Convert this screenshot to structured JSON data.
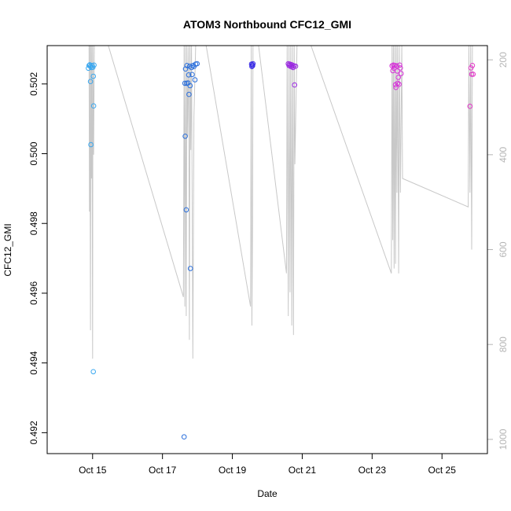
{
  "chart_data": {
    "type": "scatter",
    "title": "ATOM3 Northbound CFC12_GMI",
    "xlabel": "Date",
    "ylabel": "CFC12_GMI",
    "x_ticks": [
      {
        "value": 14.85,
        "label": "Oct 15"
      },
      {
        "value": 16.85,
        "label": "Oct 17"
      },
      {
        "value": 18.85,
        "label": "Oct 19"
      },
      {
        "value": 20.85,
        "label": "Oct 21"
      },
      {
        "value": 22.85,
        "label": "Oct 23"
      },
      {
        "value": 24.85,
        "label": "Oct 25"
      }
    ],
    "y_ticks": [
      {
        "value": 0.492,
        "label": "0.492"
      },
      {
        "value": 0.494,
        "label": "0.494"
      },
      {
        "value": 0.496,
        "label": "0.496"
      },
      {
        "value": 0.498,
        "label": "0.498"
      },
      {
        "value": 0.5,
        "label": "0.500"
      },
      {
        "value": 0.502,
        "label": "0.502"
      }
    ],
    "y2_ticks": [
      {
        "value": 200,
        "label": "200"
      },
      {
        "value": 400,
        "label": "400"
      },
      {
        "value": 600,
        "label": "600"
      },
      {
        "value": 800,
        "label": "800"
      },
      {
        "value": 1000,
        "label": "1000"
      }
    ],
    "xlim": [
      13.55,
      26.15
    ],
    "ylim": [
      0.4914,
      0.5031
    ],
    "y2lim": [
      1030,
      170
    ],
    "y2_axis_color": "#b5b5b5",
    "line_color": "#c8c8c8",
    "grid": false,
    "points": [
      {
        "x": 14.73,
        "y": 0.50245,
        "color": "#3aa8f0"
      },
      {
        "x": 14.75,
        "y": 0.50253,
        "color": "#3aa8f0"
      },
      {
        "x": 14.77,
        "y": 0.50255,
        "color": "#3aa8f0"
      },
      {
        "x": 14.79,
        "y": 0.50251,
        "color": "#3aa8f0"
      },
      {
        "x": 14.79,
        "y": 0.50207,
        "color": "#3aa8f0"
      },
      {
        "x": 14.8,
        "y": 0.50026,
        "color": "#3aa8f0"
      },
      {
        "x": 14.82,
        "y": 0.50247,
        "color": "#3aa8f0"
      },
      {
        "x": 14.84,
        "y": 0.50253,
        "color": "#3aa8f0"
      },
      {
        "x": 14.86,
        "y": 0.50248,
        "color": "#3aa8f0"
      },
      {
        "x": 14.87,
        "y": 0.50222,
        "color": "#3aa8f0"
      },
      {
        "x": 14.88,
        "y": 0.50137,
        "color": "#3aa8f0"
      },
      {
        "x": 14.89,
        "y": 0.50254,
        "color": "#3aa8f0"
      },
      {
        "x": 14.87,
        "y": 0.49375,
        "color": "#3aa8f0"
      },
      {
        "x": 17.47,
        "y": 0.49188,
        "color": "#2a6fdc"
      },
      {
        "x": 17.49,
        "y": 0.50202,
        "color": "#2a6fdc"
      },
      {
        "x": 17.5,
        "y": 0.5005,
        "color": "#2a6fdc"
      },
      {
        "x": 17.51,
        "y": 0.50243,
        "color": "#2a6fdc"
      },
      {
        "x": 17.53,
        "y": 0.49839,
        "color": "#2a6fdc"
      },
      {
        "x": 17.54,
        "y": 0.50202,
        "color": "#2a6fdc"
      },
      {
        "x": 17.55,
        "y": 0.50253,
        "color": "#2a6fdc"
      },
      {
        "x": 17.58,
        "y": 0.50203,
        "color": "#2a6fdc"
      },
      {
        "x": 17.6,
        "y": 0.50226,
        "color": "#2a6fdc"
      },
      {
        "x": 17.61,
        "y": 0.5017,
        "color": "#2a6fdc"
      },
      {
        "x": 17.63,
        "y": 0.50251,
        "color": "#2a6fdc"
      },
      {
        "x": 17.64,
        "y": 0.50195,
        "color": "#2a6fdc"
      },
      {
        "x": 17.65,
        "y": 0.49671,
        "color": "#2a6fdc"
      },
      {
        "x": 17.68,
        "y": 0.50247,
        "color": "#2a6fdc"
      },
      {
        "x": 17.7,
        "y": 0.50227,
        "color": "#2a6fdc"
      },
      {
        "x": 17.72,
        "y": 0.50253,
        "color": "#2a6fdc"
      },
      {
        "x": 17.75,
        "y": 0.5025,
        "color": "#2a6fdc"
      },
      {
        "x": 17.78,
        "y": 0.50212,
        "color": "#2a6fdc"
      },
      {
        "x": 17.8,
        "y": 0.50257,
        "color": "#2a6fdc"
      },
      {
        "x": 17.84,
        "y": 0.50258,
        "color": "#2a6fdc"
      },
      {
        "x": 19.4,
        "y": 0.50257,
        "color": "#3b2de6"
      },
      {
        "x": 19.41,
        "y": 0.5025,
        "color": "#3b2de6"
      },
      {
        "x": 19.42,
        "y": 0.50255,
        "color": "#3b2de6"
      },
      {
        "x": 19.43,
        "y": 0.50252,
        "color": "#3b2de6"
      },
      {
        "x": 19.44,
        "y": 0.50258,
        "color": "#3b2de6"
      },
      {
        "x": 20.45,
        "y": 0.50258,
        "color": "#9a28e0"
      },
      {
        "x": 20.47,
        "y": 0.50253,
        "color": "#9a28e0"
      },
      {
        "x": 20.49,
        "y": 0.50257,
        "color": "#9a28e0"
      },
      {
        "x": 20.51,
        "y": 0.50251,
        "color": "#9a28e0"
      },
      {
        "x": 20.53,
        "y": 0.50256,
        "color": "#9a28e0"
      },
      {
        "x": 20.55,
        "y": 0.50249,
        "color": "#9a28e0"
      },
      {
        "x": 20.57,
        "y": 0.50254,
        "color": "#9a28e0"
      },
      {
        "x": 20.59,
        "y": 0.50247,
        "color": "#9a28e0"
      },
      {
        "x": 20.61,
        "y": 0.50252,
        "color": "#9a28e0"
      },
      {
        "x": 20.63,
        "y": 0.50197,
        "color": "#9a28e0"
      },
      {
        "x": 20.66,
        "y": 0.50251,
        "color": "#9a28e0"
      },
      {
        "x": 23.42,
        "y": 0.50252,
        "color": "#d630d8"
      },
      {
        "x": 23.44,
        "y": 0.50238,
        "color": "#d630d8"
      },
      {
        "x": 23.46,
        "y": 0.50254,
        "color": "#d630d8"
      },
      {
        "x": 23.48,
        "y": 0.50245,
        "color": "#d630d8"
      },
      {
        "x": 23.5,
        "y": 0.50253,
        "color": "#d630d8"
      },
      {
        "x": 23.52,
        "y": 0.50198,
        "color": "#d630d8"
      },
      {
        "x": 23.53,
        "y": 0.5019,
        "color": "#d630d8"
      },
      {
        "x": 23.55,
        "y": 0.50252,
        "color": "#d630d8"
      },
      {
        "x": 23.57,
        "y": 0.50237,
        "color": "#d630d8"
      },
      {
        "x": 23.58,
        "y": 0.50202,
        "color": "#d630d8"
      },
      {
        "x": 23.6,
        "y": 0.50219,
        "color": "#d630d8"
      },
      {
        "x": 23.62,
        "y": 0.50199,
        "color": "#d630d8"
      },
      {
        "x": 23.64,
        "y": 0.50254,
        "color": "#d630d8"
      },
      {
        "x": 23.66,
        "y": 0.50246,
        "color": "#d630d8"
      },
      {
        "x": 23.68,
        "y": 0.5023,
        "color": "#d630d8"
      },
      {
        "x": 25.65,
        "y": 0.50136,
        "color": "#e236c8"
      },
      {
        "x": 25.68,
        "y": 0.50246,
        "color": "#e236c8"
      },
      {
        "x": 25.7,
        "y": 0.50228,
        "color": "#e236c8"
      },
      {
        "x": 25.72,
        "y": 0.50253,
        "color": "#e236c8"
      },
      {
        "x": 25.74,
        "y": 0.50228,
        "color": "#e236c8"
      }
    ],
    "pressure_trace": [
      [
        14.75,
        170
      ],
      [
        14.76,
        520
      ],
      [
        14.77,
        170
      ],
      [
        14.79,
        770
      ],
      [
        14.8,
        170
      ],
      [
        14.82,
        450
      ],
      [
        14.83,
        170
      ],
      [
        14.85,
        830
      ],
      [
        14.86,
        170
      ],
      [
        14.88,
        400
      ],
      [
        14.9,
        170
      ],
      [
        15.3,
        170
      ],
      [
        17.45,
        700
      ],
      [
        17.47,
        170
      ],
      [
        17.49,
        720
      ],
      [
        17.5,
        330
      ],
      [
        17.51,
        170
      ],
      [
        17.53,
        740
      ],
      [
        17.55,
        170
      ],
      [
        17.57,
        360
      ],
      [
        17.6,
        170
      ],
      [
        17.62,
        790
      ],
      [
        17.64,
        170
      ],
      [
        17.66,
        390
      ],
      [
        17.68,
        170
      ],
      [
        17.72,
        830
      ],
      [
        17.75,
        320
      ],
      [
        17.8,
        170
      ],
      [
        18.1,
        170
      ],
      [
        19.37,
        720
      ],
      [
        19.39,
        170
      ],
      [
        19.41,
        760
      ],
      [
        19.43,
        540
      ],
      [
        19.44,
        170
      ],
      [
        19.6,
        170
      ],
      [
        20.4,
        650
      ],
      [
        20.42,
        170
      ],
      [
        20.45,
        740
      ],
      [
        20.47,
        170
      ],
      [
        20.5,
        690
      ],
      [
        20.52,
        170
      ],
      [
        20.55,
        760
      ],
      [
        20.57,
        170
      ],
      [
        20.6,
        780
      ],
      [
        20.62,
        170
      ],
      [
        20.64,
        420
      ],
      [
        20.7,
        170
      ],
      [
        21.1,
        170
      ],
      [
        23.4,
        650
      ],
      [
        23.42,
        170
      ],
      [
        23.44,
        580
      ],
      [
        23.46,
        170
      ],
      [
        23.48,
        640
      ],
      [
        23.5,
        170
      ],
      [
        23.52,
        630
      ],
      [
        23.54,
        170
      ],
      [
        23.56,
        480
      ],
      [
        23.58,
        170
      ],
      [
        23.61,
        650
      ],
      [
        23.63,
        170
      ],
      [
        23.66,
        480
      ],
      [
        23.7,
        170
      ],
      [
        23.72,
        450
      ],
      [
        25.6,
        510
      ],
      [
        25.62,
        170
      ],
      [
        25.65,
        480
      ],
      [
        25.67,
        170
      ],
      [
        25.7,
        600
      ],
      [
        25.72,
        170
      ]
    ]
  }
}
